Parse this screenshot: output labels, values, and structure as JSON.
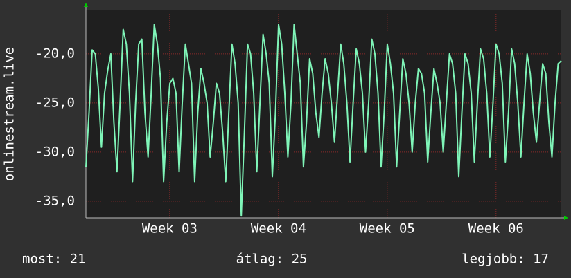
{
  "chart_data": {
    "type": "line",
    "y_label": "onlinestream.live",
    "ylim": [
      -36.7,
      -15.5
    ],
    "yticks": [
      {
        "value": -20,
        "label": "-20,0"
      },
      {
        "value": -25,
        "label": "-25,0"
      },
      {
        "value": -30,
        "label": "-30,0"
      },
      {
        "value": -35,
        "label": "-35,0"
      }
    ],
    "xlim": [
      2.23,
      6.6
    ],
    "xticks": [
      {
        "value": 3,
        "label": "Week 03"
      },
      {
        "value": 4,
        "label": "Week 04"
      },
      {
        "value": 5,
        "label": "Week 05"
      },
      {
        "value": 6,
        "label": "Week 06"
      }
    ],
    "grid": true,
    "series": [
      {
        "color": "#7ff5b8",
        "values": [
          -31.5,
          -26,
          -19.6,
          -20,
          -23.5,
          -29.5,
          -24,
          -21.7,
          -20,
          -27,
          -32,
          -25,
          -17.5,
          -19,
          -24,
          -33,
          -25,
          -19,
          -18.5,
          -26,
          -30.5,
          -24,
          -17,
          -19,
          -22.5,
          -33,
          -27,
          -23,
          -22.5,
          -24,
          -32,
          -25,
          -19,
          -21,
          -23,
          -33,
          -26,
          -21.5,
          -23,
          -25,
          -30.5,
          -27,
          -23,
          -24,
          -28,
          -33,
          -26,
          -19,
          -21,
          -25,
          -36.5,
          -28,
          -19,
          -20,
          -24,
          -32,
          -25,
          -18,
          -20,
          -23,
          -32.5,
          -26,
          -17,
          -19,
          -24,
          -30.5,
          -25,
          -17,
          -20,
          -23,
          -31.5,
          -27,
          -20.5,
          -22,
          -26,
          -28.5,
          -24,
          -20.5,
          -22,
          -25,
          -29,
          -24,
          -19,
          -21,
          -25,
          -31,
          -25,
          -19.5,
          -21,
          -24,
          -30,
          -25,
          -18.5,
          -20,
          -24,
          -31.5,
          -26,
          -19,
          -21,
          -24,
          -31.5,
          -26,
          -20.5,
          -22,
          -25,
          -30,
          -25,
          -21.5,
          -22,
          -24,
          -31,
          -26,
          -21.5,
          -23,
          -25,
          -30,
          -25,
          -20,
          -21,
          -24,
          -32.5,
          -26,
          -20,
          -21,
          -24,
          -31,
          -25,
          -19.5,
          -20.5,
          -24,
          -30.5,
          -25,
          -19,
          -20,
          -23,
          -31,
          -26,
          -19.5,
          -21,
          -25,
          -30.5,
          -25,
          -20,
          -22,
          -26,
          -29,
          -25,
          -21,
          -22,
          -27,
          -30.5,
          -25,
          -21,
          -20.7
        ]
      }
    ],
    "footer": {
      "current": "most: 21",
      "average": "átlag: 25",
      "best": "legjobb: 17"
    }
  }
}
